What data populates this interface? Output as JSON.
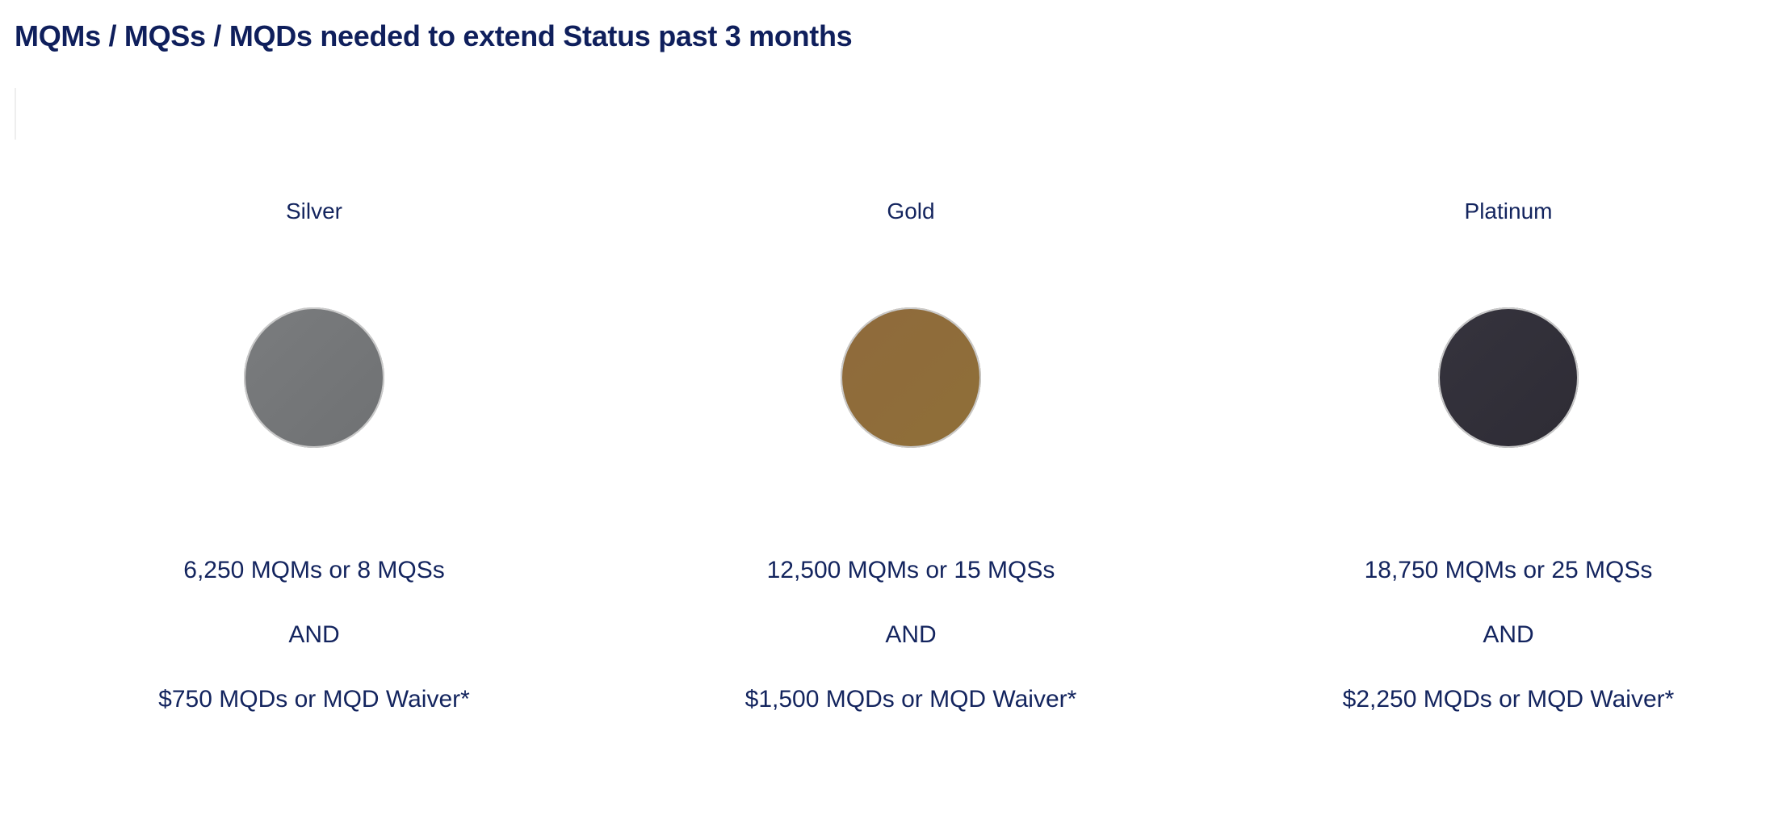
{
  "header": {
    "title": "MQMs / MQSs / MQDs needed to extend Status past 3 months"
  },
  "tiers": [
    {
      "name": "Silver",
      "requirement": "6,250 MQMs or 8 MQSs",
      "conjunction": "AND",
      "mqd": "$750 MQDs or MQD Waiver*"
    },
    {
      "name": "Gold",
      "requirement": "12,500 MQMs or 15 MQSs",
      "conjunction": "AND",
      "mqd": "$1,500 MQDs or MQD Waiver*"
    },
    {
      "name": "Platinum",
      "requirement": "18,750 MQMs or 25 MQSs",
      "conjunction": "AND",
      "mqd": "$2,250 MQDs or MQD Waiver*"
    }
  ]
}
